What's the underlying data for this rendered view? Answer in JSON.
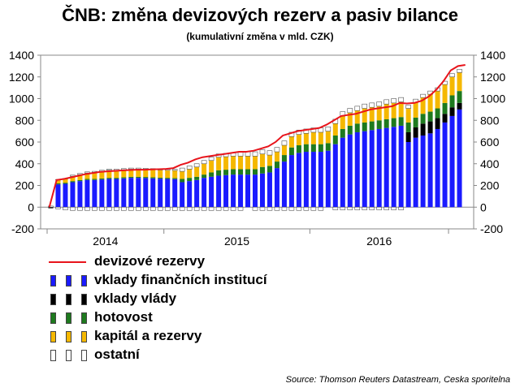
{
  "title": "ČNB: změna devizových rezerv a pasiv bilance",
  "subtitle": "(kumulativní změna v mld. CZK)",
  "source": "Source: Thomson Reuters Datastream, Ceska sporitelna",
  "chart_data": {
    "type": "bar",
    "stacked": true,
    "ylim": [
      -200,
      1400
    ],
    "yticks": [
      -200,
      0,
      200,
      400,
      600,
      800,
      1000,
      1200,
      1400
    ],
    "xtick_labels": [
      "2014",
      "2015",
      "2016"
    ],
    "grid": false,
    "secondary_axis": true,
    "legend_position": "bottom-left",
    "series": [
      {
        "name": "vklady finančních institucí",
        "color": "#1a1aff",
        "values": [
          0,
          210,
          215,
          230,
          240,
          250,
          250,
          255,
          260,
          260,
          265,
          270,
          270,
          268,
          265,
          262,
          260,
          258,
          230,
          240,
          250,
          270,
          280,
          290,
          295,
          300,
          300,
          300,
          300,
          310,
          320,
          360,
          420,
          480,
          500,
          510,
          510,
          510,
          520,
          580,
          640,
          670,
          690,
          700,
          710,
          720,
          730,
          740,
          750,
          600,
          640,
          660,
          680,
          720,
          780,
          840,
          900
        ]
      },
      {
        "name": "vklady vlády",
        "color": "#000000",
        "values": [
          -10,
          0,
          0,
          0,
          0,
          0,
          0,
          0,
          0,
          0,
          0,
          0,
          0,
          0,
          0,
          0,
          0,
          0,
          0,
          0,
          0,
          0,
          0,
          0,
          0,
          0,
          0,
          0,
          0,
          0,
          0,
          0,
          0,
          0,
          0,
          0,
          0,
          0,
          0,
          0,
          0,
          0,
          0,
          0,
          0,
          0,
          0,
          0,
          0,
          90,
          95,
          110,
          110,
          100,
          80,
          80,
          60
        ]
      },
      {
        "name": "hotovost",
        "color": "#1e7a1e",
        "values": [
          0,
          10,
          10,
          10,
          10,
          10,
          10,
          10,
          10,
          10,
          10,
          10,
          10,
          10,
          10,
          10,
          10,
          10,
          30,
          30,
          30,
          30,
          40,
          50,
          50,
          50,
          50,
          50,
          50,
          60,
          60,
          60,
          60,
          70,
          70,
          70,
          70,
          70,
          70,
          80,
          80,
          80,
          80,
          80,
          80,
          80,
          80,
          80,
          80,
          90,
          90,
          90,
          90,
          90,
          100,
          110,
          110
        ]
      },
      {
        "name": "kapitál a rezervy",
        "color": "#f5b800",
        "values": [
          0,
          30,
          35,
          45,
          50,
          55,
          60,
          65,
          70,
          70,
          70,
          70,
          70,
          70,
          70,
          70,
          70,
          70,
          70,
          80,
          90,
          100,
          110,
          120,
          120,
          120,
          120,
          120,
          120,
          120,
          100,
          90,
          90,
          100,
          100,
          100,
          110,
          110,
          110,
          110,
          120,
          120,
          120,
          130,
          130,
          130,
          140,
          140,
          140,
          130,
          140,
          150,
          160,
          160,
          170,
          170,
          170
        ]
      },
      {
        "name": "ostatní",
        "color": "#ffffff",
        "values": [
          10,
          5,
          5,
          10,
          10,
          10,
          10,
          10,
          10,
          10,
          10,
          10,
          10,
          10,
          10,
          10,
          10,
          10,
          30,
          30,
          30,
          30,
          30,
          30,
          30,
          30,
          40,
          40,
          40,
          40,
          40,
          40,
          40,
          40,
          40,
          40,
          40,
          40,
          40,
          40,
          40,
          40,
          40,
          40,
          40,
          40,
          40,
          40,
          40,
          30,
          30,
          30,
          30,
          30,
          30,
          30,
          30
        ]
      },
      {
        "name": "ostatní (záporné)",
        "color": "#ffffff",
        "legend": false,
        "values": [
          0,
          -15,
          -25,
          -30,
          -30,
          -30,
          -30,
          -30,
          -30,
          -30,
          -30,
          -30,
          -30,
          -30,
          -30,
          -30,
          -30,
          -30,
          -30,
          -30,
          -30,
          -30,
          -30,
          -30,
          -30,
          -30,
          -30,
          0,
          -30,
          -30,
          -30,
          -30,
          -30,
          -30,
          -30,
          -30,
          -30,
          -30,
          0,
          -25,
          -25,
          -25,
          -25,
          -25,
          -25,
          -25,
          -25,
          -25,
          -25,
          0,
          0,
          0,
          0,
          0,
          0,
          0,
          0
        ]
      }
    ],
    "line": {
      "name": "devizové rezervy",
      "color": "#e8141b",
      "x": [
        0,
        1,
        2,
        3,
        4,
        5,
        6,
        7,
        8,
        9,
        10,
        11,
        12,
        13,
        14,
        15,
        16,
        17,
        18,
        19,
        20,
        21,
        22,
        23,
        24,
        25,
        26,
        27,
        28,
        29,
        30,
        31,
        32,
        33,
        34,
        35,
        36,
        37,
        38,
        39,
        40,
        41,
        42,
        43,
        44,
        45,
        46,
        47,
        48,
        49,
        50,
        51,
        52,
        53,
        54,
        55,
        56,
        57
      ],
      "values": [
        0,
        250,
        260,
        275,
        290,
        305,
        315,
        325,
        330,
        335,
        338,
        342,
        345,
        345,
        348,
        350,
        352,
        360,
        390,
        410,
        440,
        460,
        470,
        480,
        490,
        500,
        510,
        510,
        520,
        540,
        560,
        600,
        660,
        680,
        700,
        710,
        720,
        730,
        760,
        800,
        840,
        850,
        860,
        880,
        900,
        910,
        920,
        930,
        960,
        955,
        960,
        980,
        1020,
        1080,
        1160,
        1260,
        1300,
        1310
      ]
    }
  },
  "legend": [
    {
      "label": "devizové rezervy",
      "kind": "line",
      "color": "#e8141b"
    },
    {
      "label": "vklady finančních institucí",
      "kind": "box",
      "color": "#1a1aff"
    },
    {
      "label": "vklady vlády",
      "kind": "box",
      "color": "#000000"
    },
    {
      "label": "hotovost",
      "kind": "box",
      "color": "#1e7a1e"
    },
    {
      "label": "kapitál a rezervy",
      "kind": "box",
      "color": "#f5b800"
    },
    {
      "label": "ostatní",
      "kind": "box",
      "color": "#ffffff"
    }
  ]
}
